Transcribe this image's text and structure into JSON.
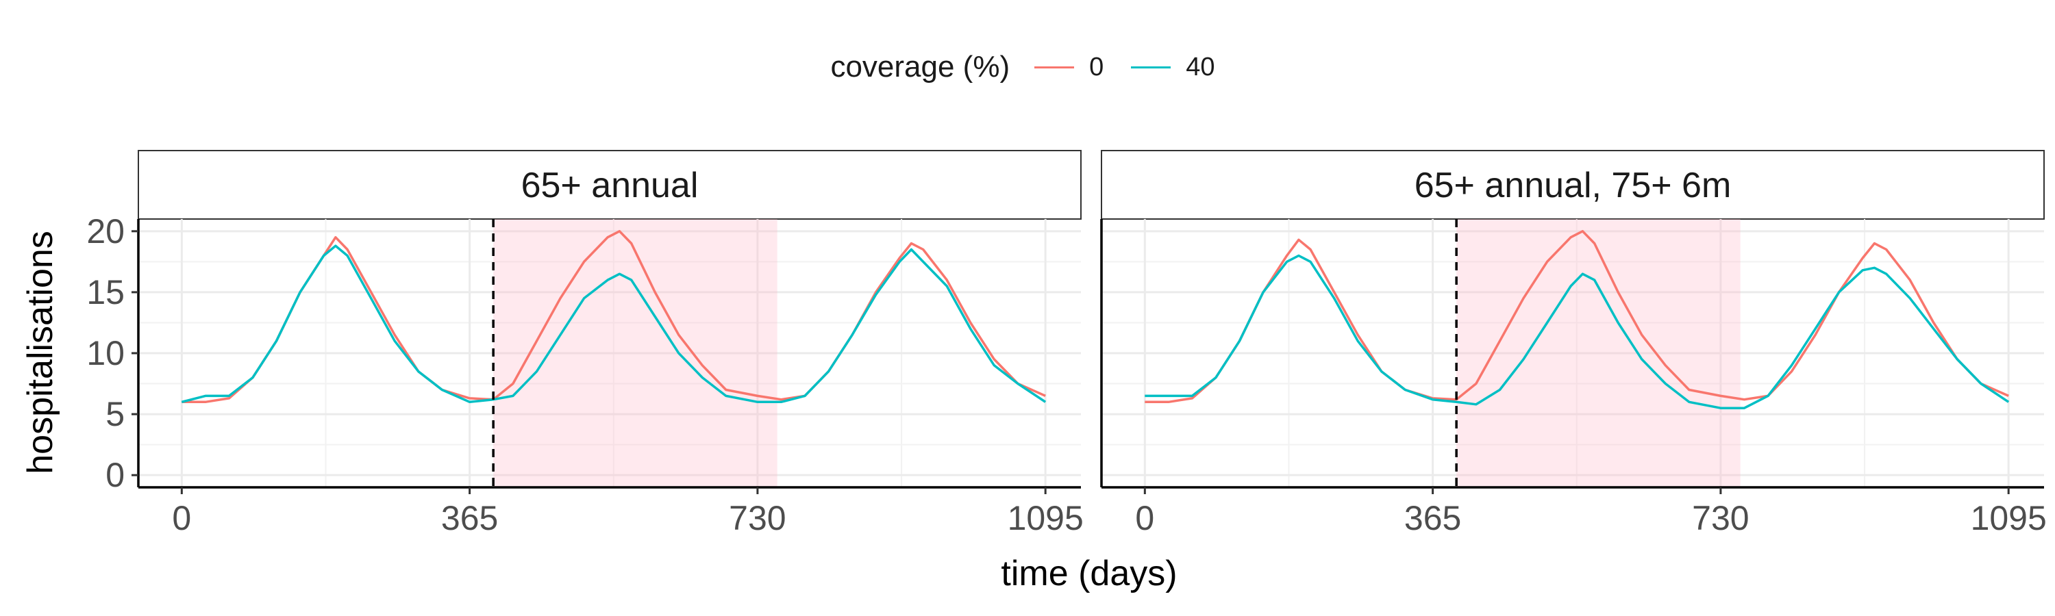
{
  "chart_data": {
    "type": "line",
    "xlabel": "time (days)",
    "ylabel": "hospitalisations",
    "xlim": [
      -55,
      1140
    ],
    "ylim": [
      -1,
      21
    ],
    "xticks": [
      0,
      365,
      730,
      1095
    ],
    "xtick_labels": [
      "0",
      "365",
      "730",
      "1095"
    ],
    "yticks": [
      0,
      5,
      10,
      15,
      20
    ],
    "ytick_labels": [
      "0",
      "5",
      "10",
      "15",
      "20"
    ],
    "grid": true,
    "legend": {
      "title": "coverage (%)",
      "position": "top",
      "entries": [
        {
          "label": "0",
          "color": "#F8766D"
        },
        {
          "label": "40",
          "color": "#00BFC4"
        }
      ]
    },
    "panels": [
      {
        "strip_label": "65+ annual",
        "vline_x": 395,
        "shaded_region": [
          395,
          755
        ],
        "series": [
          {
            "name": "0",
            "color": "#F8766D",
            "x": [
              0,
              30,
              60,
              90,
              120,
              150,
              180,
              195,
              210,
              240,
              270,
              300,
              330,
              365,
              395,
              420,
              450,
              480,
              510,
              540,
              555,
              570,
              600,
              630,
              660,
              690,
              730,
              760,
              790,
              820,
              850,
              880,
              910,
              925,
              940,
              970,
              1000,
              1030,
              1060,
              1095
            ],
            "y": [
              6,
              6,
              6.3,
              8,
              11,
              15,
              18,
              19.5,
              18.5,
              15,
              11.5,
              8.5,
              7,
              6.3,
              6.2,
              7.5,
              11,
              14.5,
              17.5,
              19.5,
              20,
              19,
              15,
              11.5,
              9,
              7,
              6.5,
              6.2,
              6.5,
              8.5,
              11.5,
              15,
              17.8,
              19,
              18.5,
              16,
              12.5,
              9.5,
              7.5,
              6.5
            ]
          },
          {
            "name": "40",
            "color": "#00BFC4",
            "x": [
              0,
              30,
              60,
              90,
              120,
              150,
              180,
              195,
              210,
              240,
              270,
              300,
              330,
              365,
              395,
              420,
              450,
              480,
              510,
              540,
              555,
              570,
              600,
              630,
              660,
              690,
              730,
              760,
              790,
              820,
              850,
              880,
              910,
              925,
              940,
              970,
              1000,
              1030,
              1060,
              1095
            ],
            "y": [
              6,
              6.5,
              6.5,
              8,
              11,
              15,
              18,
              18.8,
              18,
              14.5,
              11,
              8.5,
              7,
              6,
              6.2,
              6.5,
              8.5,
              11.5,
              14.5,
              16,
              16.5,
              16,
              13,
              10,
              8,
              6.5,
              6,
              6,
              6.5,
              8.5,
              11.5,
              14.8,
              17.5,
              18.5,
              17.5,
              15.5,
              12,
              9,
              7.5,
              6
            ]
          }
        ]
      },
      {
        "strip_label": "65+ annual, 75+ 6m",
        "vline_x": 395,
        "shaded_region": [
          395,
          755
        ],
        "series": [
          {
            "name": "0",
            "color": "#F8766D",
            "x": [
              0,
              30,
              60,
              90,
              120,
              150,
              180,
              195,
              210,
              240,
              270,
              300,
              330,
              365,
              395,
              420,
              450,
              480,
              510,
              540,
              555,
              570,
              600,
              630,
              660,
              690,
              730,
              760,
              790,
              820,
              850,
              880,
              910,
              925,
              940,
              970,
              1000,
              1030,
              1060,
              1095
            ],
            "y": [
              6,
              6,
              6.3,
              8,
              11,
              15,
              18,
              19.3,
              18.5,
              15,
              11.5,
              8.5,
              7,
              6.3,
              6.2,
              7.5,
              11,
              14.5,
              17.5,
              19.5,
              20,
              19,
              15,
              11.5,
              9,
              7,
              6.5,
              6.2,
              6.5,
              8.5,
              11.5,
              15,
              17.8,
              19,
              18.5,
              16,
              12.5,
              9.5,
              7.5,
              6.5
            ]
          },
          {
            "name": "40",
            "color": "#00BFC4",
            "x": [
              0,
              30,
              60,
              90,
              120,
              150,
              180,
              195,
              210,
              240,
              270,
              300,
              330,
              365,
              395,
              420,
              450,
              480,
              510,
              540,
              555,
              570,
              600,
              630,
              660,
              690,
              730,
              760,
              790,
              820,
              850,
              880,
              910,
              925,
              940,
              970,
              1000,
              1030,
              1060,
              1095
            ],
            "y": [
              6.5,
              6.5,
              6.5,
              8,
              11,
              15,
              17.5,
              18,
              17.5,
              14.5,
              11,
              8.5,
              7,
              6.2,
              6,
              5.8,
              7,
              9.5,
              12.5,
              15.5,
              16.5,
              16,
              12.5,
              9.5,
              7.5,
              6,
              5.5,
              5.5,
              6.5,
              9,
              12,
              15,
              16.8,
              17,
              16.5,
              14.5,
              12,
              9.5,
              7.5,
              6
            ]
          }
        ]
      }
    ]
  }
}
